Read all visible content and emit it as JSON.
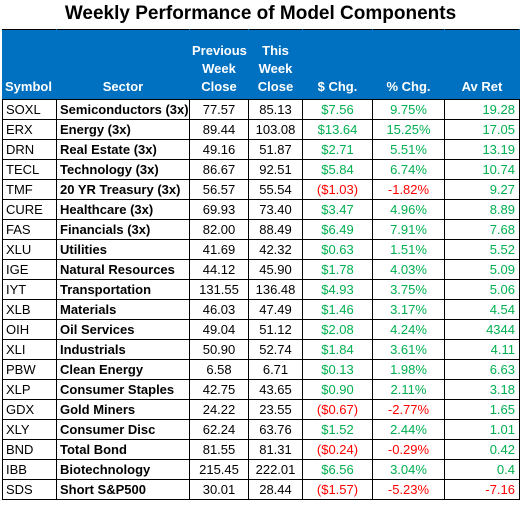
{
  "title": "Weekly Performance of Model Components",
  "colors": {
    "header_bg": "#0070c0",
    "header_text": "#ffffff",
    "positive": "#00b050",
    "negative": "#ff0000"
  },
  "headers": {
    "symbol": "Symbol",
    "sector": "Sector",
    "previous": [
      "Previous",
      "Week",
      "Close"
    ],
    "current": [
      "This",
      "Week",
      "Close"
    ],
    "change": "$ Chg.",
    "percent": "% Chg.",
    "avret": "Av Ret"
  },
  "rows": [
    {
      "symbol": "SOXL",
      "sector": "Semiconductors (3x)",
      "prev": "77.57",
      "cur": "85.13",
      "chg": "$7.56",
      "pct": "9.75%",
      "avret": "19.28"
    },
    {
      "symbol": "ERX",
      "sector": "Energy (3x)",
      "prev": "89.44",
      "cur": "103.08",
      "chg": "$13.64",
      "pct": "15.25%",
      "avret": "17.05"
    },
    {
      "symbol": "DRN",
      "sector": "Real Estate (3x)",
      "prev": "49.16",
      "cur": "51.87",
      "chg": "$2.71",
      "pct": "5.51%",
      "avret": "13.19"
    },
    {
      "symbol": "TECL",
      "sector": "Technology (3x)",
      "prev": "86.67",
      "cur": "92.51",
      "chg": "$5.84",
      "pct": "6.74%",
      "avret": "10.74"
    },
    {
      "symbol": "TMF",
      "sector": "20 YR Treasury (3x)",
      "prev": "56.57",
      "cur": "55.54",
      "chg": "($1.03)",
      "pct": "-1.82%",
      "avret": "9.27"
    },
    {
      "symbol": "CURE",
      "sector": "Healthcare (3x)",
      "prev": "69.93",
      "cur": "73.40",
      "chg": "$3.47",
      "pct": "4.96%",
      "avret": "8.89"
    },
    {
      "symbol": "FAS",
      "sector": "Financials (3x)",
      "prev": "82.00",
      "cur": "88.49",
      "chg": "$6.49",
      "pct": "7.91%",
      "avret": "7.68"
    },
    {
      "symbol": "XLU",
      "sector": "Utilities",
      "prev": "41.69",
      "cur": "42.32",
      "chg": "$0.63",
      "pct": "1.51%",
      "avret": "5.52"
    },
    {
      "symbol": "IGE",
      "sector": "Natural Resources",
      "prev": "44.12",
      "cur": "45.90",
      "chg": "$1.78",
      "pct": "4.03%",
      "avret": "5.09"
    },
    {
      "symbol": "IYT",
      "sector": "Transportation",
      "prev": "131.55",
      "cur": "136.48",
      "chg": "$4.93",
      "pct": "3.75%",
      "avret": "5.06"
    },
    {
      "symbol": "XLB",
      "sector": "Materials",
      "prev": "46.03",
      "cur": "47.49",
      "chg": "$1.46",
      "pct": "3.17%",
      "avret": "4.54"
    },
    {
      "symbol": "OIH",
      "sector": "Oil Services",
      "prev": "49.04",
      "cur": "51.12",
      "chg": "$2.08",
      "pct": "4.24%",
      "avret": "4344"
    },
    {
      "symbol": "XLI",
      "sector": "Industrials",
      "prev": "50.90",
      "cur": "52.74",
      "chg": "$1.84",
      "pct": "3.61%",
      "avret": "4.11"
    },
    {
      "symbol": "PBW",
      "sector": "Clean Energy",
      "prev": "6.58",
      "cur": "6.71",
      "chg": "$0.13",
      "pct": "1.98%",
      "avret": "6.63"
    },
    {
      "symbol": "XLP",
      "sector": "Consumer Staples",
      "prev": "42.75",
      "cur": "43.65",
      "chg": "$0.90",
      "pct": "2.11%",
      "avret": "3.18"
    },
    {
      "symbol": "GDX",
      "sector": "Gold Miners",
      "prev": "24.22",
      "cur": "23.55",
      "chg": "($0.67)",
      "pct": "-2.77%",
      "avret": "1.65"
    },
    {
      "symbol": "XLY",
      "sector": "Consumer Disc",
      "prev": "62.24",
      "cur": "63.76",
      "chg": "$1.52",
      "pct": "2.44%",
      "avret": "1.01"
    },
    {
      "symbol": "BND",
      "sector": "Total Bond",
      "prev": "81.55",
      "cur": "81.31",
      "chg": "($0.24)",
      "pct": "-0.29%",
      "avret": "0.42"
    },
    {
      "symbol": "IBB",
      "sector": "Biotechnology",
      "prev": "215.45",
      "cur": "222.01",
      "chg": "$6.56",
      "pct": "3.04%",
      "avret": "0.4"
    },
    {
      "symbol": "SDS",
      "sector": "Short S&P500",
      "prev": "30.01",
      "cur": "28.44",
      "chg": "($1.57)",
      "pct": "-5.23%",
      "avret": "-7.16"
    }
  ]
}
